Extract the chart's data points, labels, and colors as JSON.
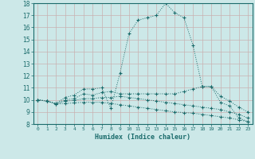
{
  "xlabel": "Humidex (Indice chaleur)",
  "xlim": [
    -0.5,
    23.5
  ],
  "ylim": [
    8,
    18
  ],
  "yticks": [
    8,
    9,
    10,
    11,
    12,
    13,
    14,
    15,
    16,
    17,
    18
  ],
  "xticks": [
    0,
    1,
    2,
    3,
    4,
    5,
    6,
    7,
    8,
    9,
    10,
    11,
    12,
    13,
    14,
    15,
    16,
    17,
    18,
    19,
    20,
    21,
    22,
    23
  ],
  "bg_color": "#cce8e8",
  "line_color": "#1a6b6b",
  "grid_color": "#c8b0b0",
  "lines": [
    {
      "x": [
        0,
        1,
        2,
        3,
        4,
        5,
        6,
        7,
        8,
        9,
        10,
        11,
        12,
        13,
        14,
        15,
        16,
        17,
        18,
        19,
        20,
        21,
        22,
        23
      ],
      "y": [
        10.0,
        9.9,
        9.7,
        10.2,
        10.4,
        10.9,
        10.9,
        11.0,
        9.3,
        12.2,
        15.5,
        16.6,
        16.8,
        17.0,
        18.0,
        17.2,
        16.8,
        14.5,
        11.1,
        11.1,
        9.8,
        9.5,
        8.5,
        8.2
      ]
    },
    {
      "x": [
        0,
        1,
        2,
        3,
        4,
        5,
        6,
        7,
        8,
        9,
        10,
        11,
        12,
        13,
        14,
        15,
        16,
        17,
        18,
        19,
        20,
        21,
        22,
        23
      ],
      "y": [
        10.0,
        9.9,
        9.7,
        10.0,
        10.1,
        10.5,
        10.4,
        10.6,
        10.7,
        10.5,
        10.5,
        10.5,
        10.5,
        10.5,
        10.5,
        10.5,
        10.7,
        10.9,
        11.1,
        11.1,
        10.3,
        9.9,
        9.4,
        9.0
      ]
    },
    {
      "x": [
        0,
        1,
        2,
        3,
        4,
        5,
        6,
        7,
        8,
        9,
        10,
        11,
        12,
        13,
        14,
        15,
        16,
        17,
        18,
        19,
        20,
        21,
        22,
        23
      ],
      "y": [
        10.0,
        9.9,
        9.65,
        9.9,
        9.95,
        10.1,
        10.1,
        10.2,
        10.2,
        10.3,
        10.2,
        10.1,
        10.0,
        9.9,
        9.8,
        9.7,
        9.6,
        9.5,
        9.4,
        9.3,
        9.2,
        9.0,
        8.8,
        8.5
      ]
    },
    {
      "x": [
        0,
        1,
        2,
        3,
        4,
        5,
        6,
        7,
        8,
        9,
        10,
        11,
        12,
        13,
        14,
        15,
        16,
        17,
        18,
        19,
        20,
        21,
        22,
        23
      ],
      "y": [
        10.0,
        9.9,
        9.65,
        9.7,
        9.75,
        9.8,
        9.8,
        9.8,
        9.7,
        9.6,
        9.5,
        9.4,
        9.3,
        9.2,
        9.1,
        9.0,
        8.95,
        8.9,
        8.8,
        8.7,
        8.6,
        8.5,
        8.35,
        8.2
      ]
    }
  ]
}
